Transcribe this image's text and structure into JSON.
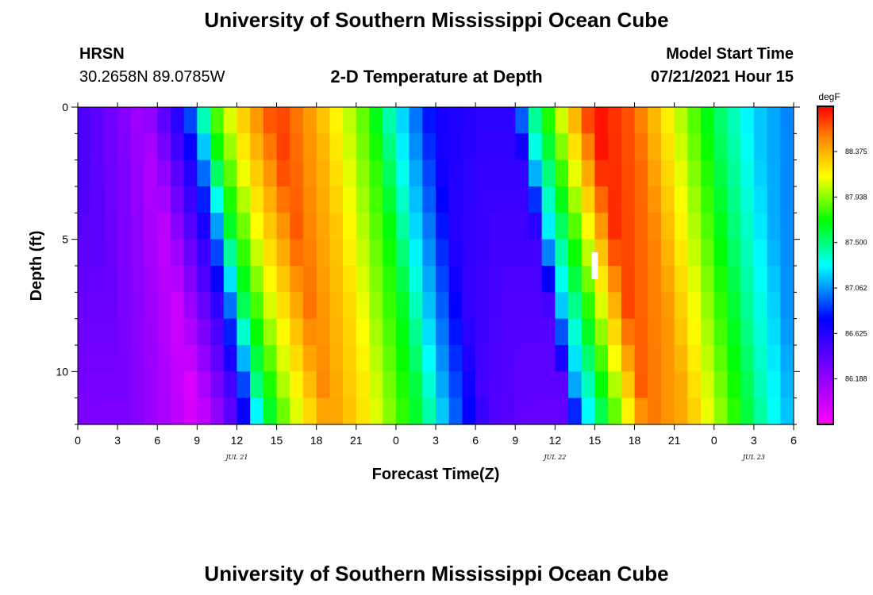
{
  "header": {
    "title": "University of Southern Mississippi Ocean Cube",
    "station": "HRSN",
    "coordinates": "30.2658N  89.0785W",
    "chart_title": "2-D Temperature at Depth",
    "model_start_label": "Model Start Time",
    "model_start_value": "07/21/2021 Hour 15"
  },
  "footer": {
    "title": "University of Southern Mississippi Ocean Cube"
  },
  "chart_data": {
    "type": "heatmap",
    "xlabel": "Forecast Time(Z)",
    "ylabel": "Depth (ft)",
    "x_range": [
      0,
      54
    ],
    "y_range": [
      0,
      12
    ],
    "x_tick_labels": [
      "0",
      "3",
      "6",
      "9",
      "12",
      "15",
      "18",
      "21",
      "0",
      "3",
      "6",
      "9",
      "12",
      "15",
      "18",
      "21",
      "0",
      "3",
      "6"
    ],
    "date_labels": [
      {
        "text": "JUL 21",
        "hour": 12
      },
      {
        "text": "JUL 22",
        "hour": 36
      },
      {
        "text": "JUL 23",
        "hour": 51
      }
    ],
    "y_ticks": [
      0,
      5,
      10
    ],
    "colorbar": {
      "unit": "degF",
      "tick_labels": [
        "88.375",
        "87.938",
        "87.500",
        "87.062",
        "86.625",
        "86.188"
      ],
      "tick_values": [
        88.375,
        87.938,
        87.5,
        87.062,
        86.625,
        86.188
      ],
      "min": 85.75,
      "max": 88.81
    },
    "current_time_marker_hour": 39,
    "time_step_hours": 1,
    "depth_levels_ft": [
      0,
      1,
      2,
      3,
      4,
      5,
      6,
      7,
      8,
      9,
      10,
      11
    ],
    "surface_temperature_cycle": {
      "hours": [
        0,
        3,
        5,
        8,
        9,
        10,
        12,
        15,
        18,
        22,
        24,
        26,
        27,
        30,
        33,
        34,
        36,
        39,
        42,
        45,
        48,
        51,
        54
      ],
      "values": [
        86.5,
        86.3,
        86.1,
        86.7,
        87.1,
        87.7,
        88.2,
        88.7,
        88.4,
        87.8,
        87.3,
        86.9,
        86.7,
        86.6,
        86.6,
        87.3,
        87.9,
        88.8,
        88.6,
        88.1,
        87.6,
        87.2,
        87.0
      ]
    },
    "thermocline_lag_hours_per_ft": 0.35
  }
}
